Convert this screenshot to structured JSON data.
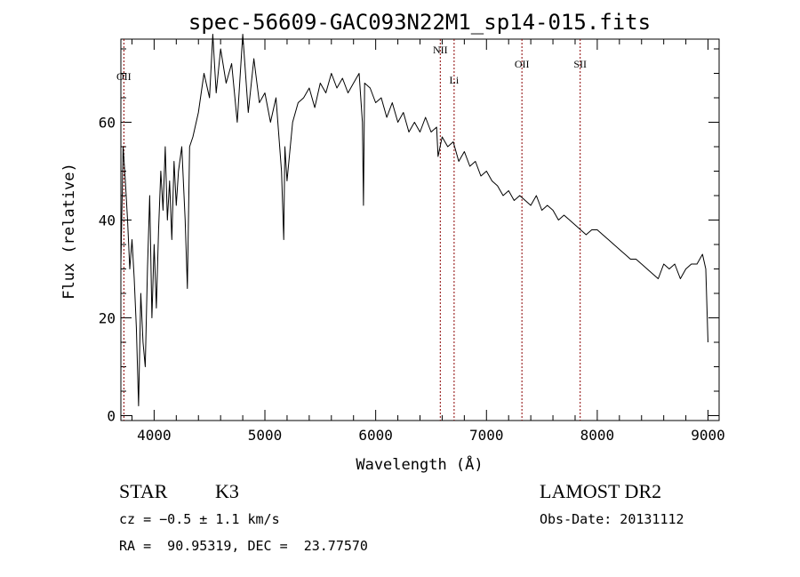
{
  "chart_data": {
    "type": "line",
    "title": "spec-56609-GAC093N22M1_sp14-015.fits",
    "xlabel": "Wavelength (Å)",
    "ylabel": "Flux (relative)",
    "xlim": [
      3700,
      9100
    ],
    "ylim": [
      -1,
      77
    ],
    "x_ticks": [
      4000,
      5000,
      6000,
      7000,
      8000,
      9000
    ],
    "y_ticks": [
      0,
      20,
      40,
      60
    ],
    "x_tick_labels": [
      "4000",
      "5000",
      "6000",
      "7000",
      "8000",
      "9000"
    ],
    "y_tick_labels": [
      "0",
      "20",
      "40",
      "60"
    ],
    "grid": false,
    "line_color": "#000000",
    "marker_color": "#8b0000",
    "series": [
      {
        "x": [
          3700,
          3720,
          3740,
          3760,
          3780,
          3800,
          3820,
          3840,
          3860,
          3880,
          3900,
          3920,
          3940,
          3960,
          3980,
          4000,
          4020,
          4040,
          4060,
          4080,
          4100,
          4120,
          4140,
          4160,
          4180,
          4200,
          4220,
          4250,
          4280,
          4300,
          4320,
          4350,
          4400,
          4450,
          4500,
          4530,
          4560,
          4600,
          4650,
          4700,
          4750,
          4800,
          4850,
          4900,
          4950,
          5000,
          5050,
          5100,
          5150,
          5170,
          5180,
          5200,
          5250,
          5300,
          5350,
          5400,
          5450,
          5500,
          5550,
          5600,
          5650,
          5700,
          5750,
          5800,
          5850,
          5880,
          5890,
          5900,
          5950,
          6000,
          6050,
          6100,
          6150,
          6200,
          6250,
          6300,
          6350,
          6400,
          6450,
          6500,
          6550,
          6563,
          6600,
          6650,
          6700,
          6750,
          6800,
          6850,
          6900,
          6950,
          7000,
          7050,
          7100,
          7150,
          7200,
          7250,
          7300,
          7350,
          7400,
          7450,
          7500,
          7550,
          7600,
          7650,
          7700,
          7750,
          7800,
          7850,
          7900,
          7950,
          8000,
          8050,
          8100,
          8150,
          8200,
          8250,
          8300,
          8350,
          8400,
          8450,
          8500,
          8550,
          8600,
          8650,
          8700,
          8750,
          8800,
          8850,
          8900,
          8950,
          8980,
          9000
        ],
        "y": [
          31,
          55,
          48,
          40,
          30,
          36,
          28,
          18,
          2,
          25,
          15,
          10,
          30,
          45,
          20,
          35,
          22,
          38,
          50,
          42,
          55,
          40,
          48,
          36,
          52,
          43,
          50,
          55,
          40,
          26,
          55,
          57,
          62,
          70,
          65,
          78,
          66,
          75,
          68,
          72,
          60,
          78,
          62,
          73,
          64,
          66,
          60,
          65,
          50,
          36,
          55,
          48,
          60,
          64,
          65,
          67,
          63,
          68,
          66,
          70,
          67,
          69,
          66,
          68,
          70,
          60,
          43,
          68,
          67,
          64,
          65,
          61,
          64,
          60,
          62,
          58,
          60,
          58,
          61,
          58,
          59,
          53,
          57,
          55,
          56,
          52,
          54,
          51,
          52,
          49,
          50,
          48,
          47,
          45,
          46,
          44,
          45,
          44,
          43,
          45,
          42,
          43,
          42,
          40,
          41,
          40,
          39,
          38,
          37,
          38,
          38,
          37,
          36,
          35,
          34,
          33,
          32,
          32,
          31,
          30,
          29,
          28,
          31,
          30,
          31,
          28,
          30,
          31,
          31,
          33,
          30,
          15
        ]
      }
    ],
    "line_markers": [
      {
        "label": "OII",
        "x": 3727
      },
      {
        "label": "NII",
        "x": 6583
      },
      {
        "label": "Li",
        "x": 6708
      },
      {
        "label": "OII",
        "x": 7320
      },
      {
        "label": "SII",
        "x": 7846
      }
    ]
  },
  "footer": {
    "class_label": "STAR",
    "subclass": "K3",
    "survey": "LAMOST DR2",
    "cz": "cz = −0.5 ± 1.1 km/s",
    "obs_date": "Obs-Date: 20131112",
    "ra_dec": "RA =  90.95319, DEC =  23.77570"
  }
}
